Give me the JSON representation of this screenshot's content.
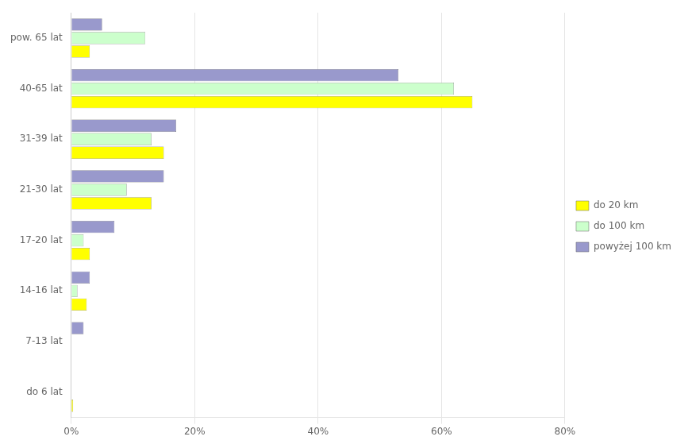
{
  "chart_data": {
    "type": "bar",
    "orientation": "horizontal",
    "categories": [
      "do 6 lat",
      "7-13 lat",
      "14-16 lat",
      "17-20 lat",
      "21-30 lat",
      "31-39 lat",
      "40-65 lat",
      "pow. 65 lat"
    ],
    "series": [
      {
        "name": "do 20 km",
        "color": "#FFFF00",
        "values": [
          0.3,
          0.0,
          2.5,
          3.0,
          13.0,
          15.0,
          65.0,
          3.0
        ]
      },
      {
        "name": "do 100 km",
        "color": "#CCFFCC",
        "values": [
          0.0,
          0.0,
          1.0,
          2.0,
          9.0,
          13.0,
          62.0,
          12.0
        ]
      },
      {
        "name": "powyżej 100 km",
        "color": "#9999CC",
        "values": [
          0.0,
          2.0,
          3.0,
          7.0,
          15.0,
          17.0,
          53.0,
          5.0
        ]
      }
    ],
    "xlim": [
      0,
      80
    ],
    "xticks": [
      {
        "value": 0,
        "label": "0%"
      },
      {
        "value": 20,
        "label": "20%"
      },
      {
        "value": 40,
        "label": "40%"
      },
      {
        "value": 60,
        "label": "60%"
      },
      {
        "value": 80,
        "label": "80%"
      }
    ],
    "grid": true,
    "legend": "right"
  }
}
